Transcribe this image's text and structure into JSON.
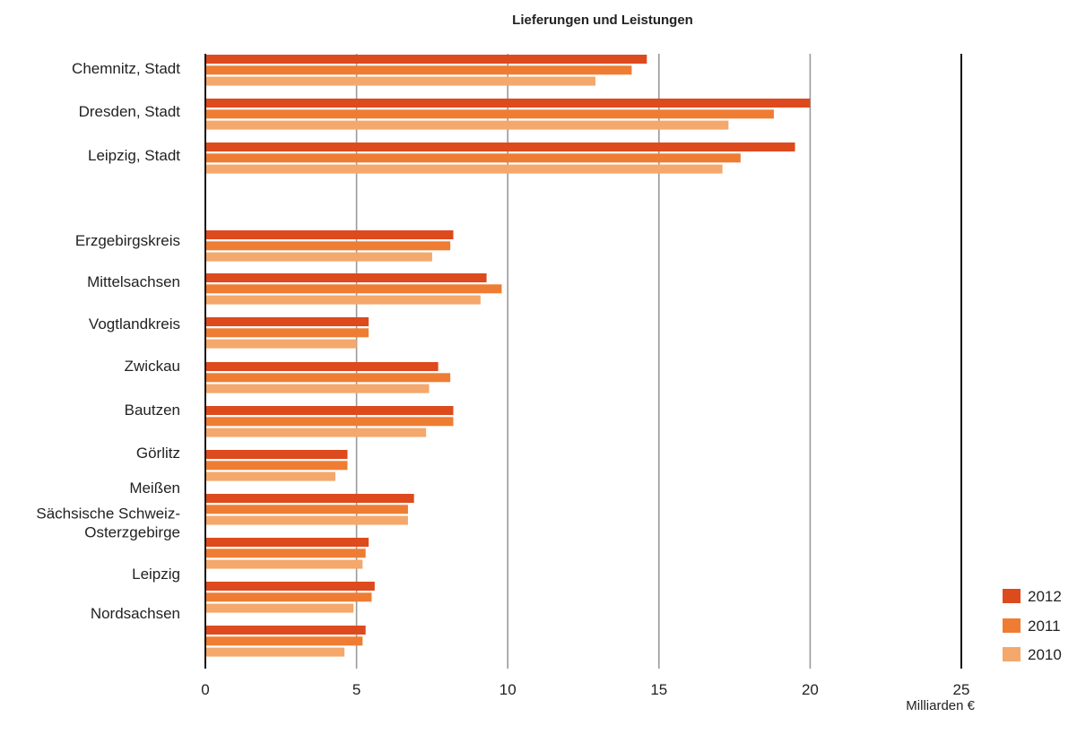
{
  "chart_data": {
    "type": "bar",
    "orientation": "horizontal",
    "title": "Lieferungen und Leistungen",
    "xlabel": "Milliarden €",
    "ylabel": "",
    "xlim": [
      0,
      25
    ],
    "xticks": [
      0,
      5,
      10,
      15,
      20,
      25
    ],
    "grid": true,
    "legend_position": "bottom-right",
    "colors": {
      "2012": "#dd4a1e",
      "2011": "#ee7d33",
      "2010": "#f4a86b"
    },
    "categories": [
      {
        "label": [
          "Chemnitz, Stadt"
        ]
      },
      {
        "label": [
          "Dresden, Stadt"
        ]
      },
      {
        "label": [
          "Leipzig, Stadt"
        ]
      },
      {
        "label": [
          "Erzgebirgskreis"
        ]
      },
      {
        "label": [
          "Mittelsachsen"
        ]
      },
      {
        "label": [
          "Vogtlandkreis"
        ]
      },
      {
        "label": [
          "Zwickau"
        ]
      },
      {
        "label": [
          "Bautzen"
        ]
      },
      {
        "label": [
          "Görlitz"
        ]
      },
      {
        "label": [
          "Meißen"
        ]
      },
      {
        "label": [
          "Sächsische Schweiz-",
          "Osterzgebirge"
        ]
      },
      {
        "label": [
          "Leipzig"
        ]
      },
      {
        "label": [
          "Nordsachsen"
        ]
      }
    ],
    "series": [
      {
        "name": "2012",
        "values": [
          14.6,
          20.0,
          19.5,
          8.2,
          9.3,
          5.4,
          7.7,
          8.2,
          4.7,
          6.9,
          5.4,
          5.6,
          5.3
        ]
      },
      {
        "name": "2011",
        "values": [
          14.1,
          18.8,
          17.7,
          8.1,
          9.8,
          5.4,
          8.1,
          8.2,
          4.7,
          6.7,
          5.3,
          5.5,
          5.2
        ]
      },
      {
        "name": "2010",
        "values": [
          12.9,
          17.3,
          17.1,
          7.5,
          9.1,
          5.0,
          7.4,
          7.3,
          4.3,
          6.7,
          5.2,
          4.9,
          4.6
        ]
      }
    ]
  }
}
